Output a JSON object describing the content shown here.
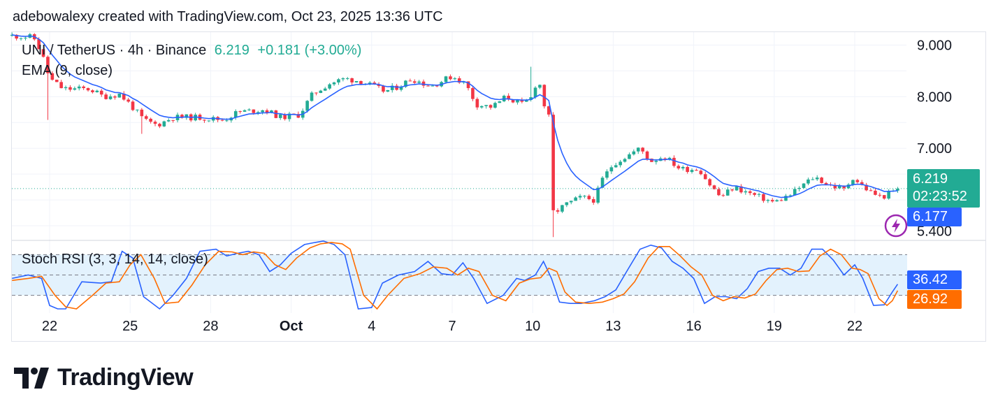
{
  "header": {
    "text": "adebowalexy created with TradingView.com, Oct 23, 2025 13:36 UTC"
  },
  "legend": {
    "symbol": "UNI / TetherUS · 4h · Binance",
    "last": "6.219",
    "change": "+0.181 (+3.00%)",
    "ema": "EMA (9, close)",
    "stoch": "Stoch RSI (3, 3, 14, 14, close)"
  },
  "price_labels": {
    "last": "6.219",
    "countdown": "02:23:52",
    "ema": "6.177",
    "stoch_k": "36.42",
    "stoch_d": "26.92"
  },
  "colors": {
    "up": "#22ab94",
    "down": "#f23645",
    "ema": "#2962ff",
    "k": "#2962ff",
    "d": "#ff6d00",
    "band": "#e3f2fd",
    "flash": "#9c27b0"
  },
  "icons": {
    "alert": "lightning-icon",
    "logo": "tradingview-logo-icon"
  },
  "logo": {
    "text": "TradingView"
  },
  "chart_data": [
    {
      "type": "candlestick",
      "title": "UNI / TetherUS · 4h · Binance",
      "y_ticks": [
        "9.000",
        "8.000",
        "7.000",
        "5.400"
      ],
      "y_tick_values": [
        9.0,
        8.0,
        7.0,
        5.4
      ],
      "ylim": [
        5.23,
        9.25
      ],
      "x_ticks": [
        {
          "label": "22",
          "day": 0
        },
        {
          "label": "25",
          "day": 3
        },
        {
          "label": "28",
          "day": 6
        },
        {
          "label": "Oct",
          "day": 9
        },
        {
          "label": "4",
          "day": 12
        },
        {
          "label": "7",
          "day": 15
        },
        {
          "label": "10",
          "day": 18
        },
        {
          "label": "13",
          "day": 21
        },
        {
          "label": "16",
          "day": 24
        },
        {
          "label": "19",
          "day": 27
        },
        {
          "label": "22",
          "day": 30
        }
      ],
      "last_price": 6.219,
      "ema_last": 6.177,
      "anchors": [
        [
          -1.4,
          9.18
        ],
        [
          -0.6,
          9.15
        ],
        [
          -0.3,
          8.85
        ],
        [
          0.0,
          8.35
        ],
        [
          0.5,
          8.15
        ],
        [
          1.5,
          8.15
        ],
        [
          2.0,
          8.0
        ],
        [
          2.6,
          8.05
        ],
        [
          3.0,
          7.85
        ],
        [
          3.5,
          7.55
        ],
        [
          4.0,
          7.45
        ],
        [
          4.6,
          7.6
        ],
        [
          5.5,
          7.6
        ],
        [
          6.5,
          7.55
        ],
        [
          7.0,
          7.7
        ],
        [
          8.0,
          7.75
        ],
        [
          8.6,
          7.6
        ],
        [
          9.3,
          7.65
        ],
        [
          9.8,
          8.05
        ],
        [
          10.4,
          8.25
        ],
        [
          11.0,
          8.35
        ],
        [
          11.6,
          8.3
        ],
        [
          12.5,
          8.1
        ],
        [
          13.0,
          8.2
        ],
        [
          13.5,
          8.35
        ],
        [
          14.2,
          8.2
        ],
        [
          15.0,
          8.4
        ],
        [
          15.5,
          8.25
        ],
        [
          15.9,
          7.85
        ],
        [
          16.5,
          7.8
        ],
        [
          17.0,
          8.0
        ],
        [
          17.6,
          7.85
        ],
        [
          18.0,
          8.0
        ],
        [
          18.2,
          8.45
        ],
        [
          18.35,
          7.95
        ],
        [
          18.6,
          7.6
        ],
        [
          18.8,
          5.75
        ],
        [
          19.2,
          5.9
        ],
        [
          19.8,
          6.05
        ],
        [
          20.3,
          6.0
        ],
        [
          20.6,
          6.4
        ],
        [
          21.0,
          6.7
        ],
        [
          21.5,
          6.85
        ],
        [
          22.0,
          7.0
        ],
        [
          22.4,
          6.75
        ],
        [
          22.9,
          6.85
        ],
        [
          23.5,
          6.6
        ],
        [
          24.2,
          6.6
        ],
        [
          24.6,
          6.3
        ],
        [
          25.0,
          6.05
        ],
        [
          25.5,
          6.25
        ],
        [
          26.2,
          6.1
        ],
        [
          27.0,
          5.95
        ],
        [
          27.6,
          6.1
        ],
        [
          28.1,
          6.3
        ],
        [
          28.5,
          6.45
        ],
        [
          29.0,
          6.3
        ],
        [
          29.6,
          6.2
        ],
        [
          29.95,
          6.45
        ],
        [
          30.2,
          6.3
        ],
        [
          30.6,
          6.15
        ],
        [
          31.0,
          6.05
        ],
        [
          31.4,
          6.15
        ],
        [
          31.6,
          6.22
        ]
      ]
    },
    {
      "type": "line",
      "title": "Stoch RSI (3, 3, 14, 14, close)",
      "ylim": [
        0,
        100
      ],
      "band": [
        20,
        80
      ],
      "levels": [
        20,
        50,
        80
      ],
      "series": [
        {
          "name": "K",
          "x": [
            -1.4,
            -0.8,
            -0.3,
            0.0,
            0.3,
            0.6,
            1.2,
            1.9,
            2.3,
            2.7,
            3.1,
            3.5,
            4.1,
            4.6,
            5.1,
            5.6,
            6.2,
            6.6,
            7.0,
            7.4,
            7.8,
            8.2,
            8.6,
            9.0,
            9.5,
            9.9,
            10.2,
            10.6,
            11.0,
            11.5,
            12.0,
            12.4,
            13.0,
            13.6,
            14.1,
            14.6,
            15.0,
            15.4,
            15.8,
            16.3,
            16.9,
            17.4,
            17.7,
            18.1,
            18.4,
            18.7,
            19.0,
            19.4,
            19.8,
            20.3,
            20.7,
            21.1,
            21.5,
            22.0,
            22.4,
            22.8,
            23.2,
            23.6,
            24.0,
            24.4,
            24.8,
            25.2,
            25.6,
            26.0,
            26.4,
            26.8,
            27.2,
            27.6,
            28.0,
            28.4,
            28.8,
            29.2,
            29.6,
            30.0,
            30.3,
            30.7,
            31.1,
            31.4,
            31.6
          ],
          "values": [
            45,
            50,
            45,
            5,
            0,
            0,
            40,
            38,
            40,
            85,
            75,
            18,
            0,
            20,
            45,
            85,
            88,
            78,
            82,
            85,
            80,
            55,
            65,
            82,
            95,
            98,
            100,
            95,
            80,
            0,
            2,
            38,
            50,
            55,
            70,
            52,
            50,
            68,
            45,
            8,
            20,
            45,
            42,
            50,
            70,
            45,
            10,
            8,
            8,
            12,
            18,
            28,
            55,
            88,
            94,
            90,
            70,
            60,
            45,
            8,
            18,
            18,
            15,
            30,
            55,
            60,
            60,
            50,
            60,
            88,
            88,
            72,
            50,
            65,
            45,
            5,
            6,
            25,
            36.42
          ]
        },
        {
          "name": "D",
          "x": [
            -1.4,
            -0.8,
            -0.3,
            0.2,
            0.6,
            1.0,
            1.6,
            2.1,
            2.6,
            3.0,
            3.4,
            3.9,
            4.3,
            4.8,
            5.3,
            5.8,
            6.3,
            6.8,
            7.2,
            7.6,
            8.0,
            8.4,
            8.8,
            9.2,
            9.7,
            10.1,
            10.5,
            10.9,
            11.2,
            11.7,
            12.2,
            12.6,
            13.2,
            13.8,
            14.3,
            14.8,
            15.2,
            15.6,
            16.0,
            16.5,
            17.0,
            17.5,
            17.9,
            18.3,
            18.6,
            18.9,
            19.2,
            19.6,
            20.1,
            20.6,
            21.0,
            21.4,
            21.8,
            22.3,
            22.7,
            23.1,
            23.5,
            23.9,
            24.3,
            24.7,
            25.1,
            25.5,
            25.9,
            26.3,
            26.7,
            27.1,
            27.5,
            27.9,
            28.3,
            28.7,
            29.1,
            29.5,
            29.9,
            30.2,
            30.5,
            30.9,
            31.2,
            31.4,
            31.6
          ],
          "values": [
            42,
            45,
            48,
            20,
            3,
            0,
            20,
            38,
            40,
            65,
            80,
            45,
            8,
            10,
            35,
            65,
            85,
            84,
            80,
            84,
            82,
            65,
            58,
            75,
            90,
            96,
            98,
            96,
            88,
            20,
            0,
            20,
            45,
            52,
            62,
            60,
            50,
            60,
            55,
            20,
            12,
            38,
            44,
            46,
            60,
            55,
            25,
            10,
            8,
            10,
            15,
            22,
            40,
            75,
            92,
            92,
            78,
            62,
            50,
            20,
            12,
            18,
            16,
            22,
            42,
            58,
            60,
            55,
            56,
            78,
            88,
            80,
            60,
            58,
            52,
            15,
            5,
            12,
            26.92
          ]
        }
      ]
    }
  ]
}
